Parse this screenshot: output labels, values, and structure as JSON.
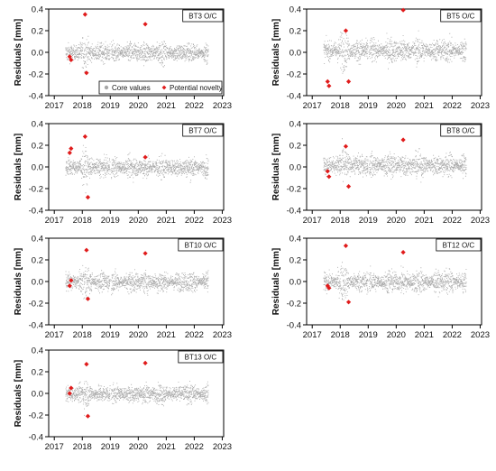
{
  "figure": {
    "shared_axes": {
      "ylabel": "Residuals [mm]",
      "ylim": [
        -0.4,
        0.4
      ],
      "yticks": [
        -0.4,
        -0.2,
        0.0,
        0.2,
        0.4
      ],
      "ytick_labels": [
        "-0.4",
        "-0.2",
        "0.0",
        "0.2",
        "0.4"
      ],
      "xlim": [
        2016.8,
        2023.05
      ],
      "xticks": [
        2017,
        2018,
        2019,
        2020,
        2021,
        2022,
        2023
      ],
      "xtick_labels": [
        "2017",
        "2018",
        "2019",
        "2020",
        "2021",
        "2022",
        "2023"
      ]
    },
    "legend": {
      "placement": "bottom-right of first panel",
      "items": [
        {
          "label": "Core values",
          "color": "#a6a6a6"
        },
        {
          "label": "Potential novelty",
          "color": "#e01b1b"
        }
      ]
    },
    "colors": {
      "core": "#a6a6a6",
      "novelty": "#e01b1b"
    }
  },
  "chart_data": [
    {
      "type": "scatter",
      "title": "BT3 O/C",
      "core_values": {
        "x_range": [
          2017.4,
          2022.5
        ],
        "center": 0.0,
        "band": 0.11,
        "gap_at": 2019.0
      },
      "series": [
        {
          "name": "Potential novelty",
          "x": [
            2017.55,
            2017.6,
            2018.1,
            2018.15,
            2020.25
          ],
          "y": [
            -0.04,
            -0.07,
            0.35,
            -0.19,
            0.26
          ]
        }
      ]
    },
    {
      "type": "scatter",
      "title": "BT5 O/C",
      "core_values": {
        "x_range": [
          2017.4,
          2022.5
        ],
        "center": 0.02,
        "band": 0.13,
        "gap_at": 2019.0
      },
      "series": [
        {
          "name": "Potential novelty",
          "x": [
            2017.55,
            2017.6,
            2018.2,
            2018.3,
            2020.25
          ],
          "y": [
            -0.27,
            -0.31,
            0.2,
            -0.27,
            0.39
          ]
        }
      ]
    },
    {
      "type": "scatter",
      "title": "BT7 O/C",
      "core_values": {
        "x_range": [
          2017.4,
          2022.5
        ],
        "center": 0.0,
        "band": 0.11,
        "gap_at": 2019.0
      },
      "series": [
        {
          "name": "Potential novelty",
          "x": [
            2017.55,
            2017.6,
            2018.1,
            2018.2,
            2020.25
          ],
          "y": [
            0.13,
            0.17,
            0.28,
            -0.28,
            0.09
          ]
        }
      ]
    },
    {
      "type": "scatter",
      "title": "BT8 O/C",
      "core_values": {
        "x_range": [
          2017.4,
          2022.5
        ],
        "center": 0.02,
        "band": 0.12,
        "gap_at": 2019.0
      },
      "series": [
        {
          "name": "Potential novelty",
          "x": [
            2017.55,
            2017.6,
            2018.2,
            2018.3,
            2020.25
          ],
          "y": [
            -0.04,
            -0.09,
            0.19,
            -0.18,
            0.25
          ]
        }
      ]
    },
    {
      "type": "scatter",
      "title": "BT10 O/C",
      "core_values": {
        "x_range": [
          2017.4,
          2022.5
        ],
        "center": 0.0,
        "band": 0.11,
        "gap_at": 2019.0
      },
      "series": [
        {
          "name": "Potential novelty",
          "x": [
            2017.55,
            2017.6,
            2018.15,
            2018.2,
            2020.25
          ],
          "y": [
            -0.04,
            0.01,
            0.29,
            -0.16,
            0.26
          ]
        }
      ]
    },
    {
      "type": "scatter",
      "title": "BT12 O/C",
      "core_values": {
        "x_range": [
          2017.4,
          2022.5
        ],
        "center": 0.0,
        "band": 0.12,
        "gap_at": 2019.0
      },
      "series": [
        {
          "name": "Potential novelty",
          "x": [
            2017.55,
            2017.6,
            2018.2,
            2018.3,
            2020.25
          ],
          "y": [
            -0.04,
            -0.06,
            0.33,
            -0.19,
            0.27
          ]
        }
      ]
    },
    {
      "type": "scatter",
      "title": "BT13 O/C",
      "core_values": {
        "x_range": [
          2017.4,
          2022.5
        ],
        "center": 0.0,
        "band": 0.1,
        "gap_at": 2019.0
      },
      "series": [
        {
          "name": "Potential novelty",
          "x": [
            2017.55,
            2017.6,
            2018.15,
            2018.2,
            2020.25
          ],
          "y": [
            0.0,
            0.05,
            0.27,
            -0.21,
            0.28
          ]
        }
      ]
    }
  ]
}
